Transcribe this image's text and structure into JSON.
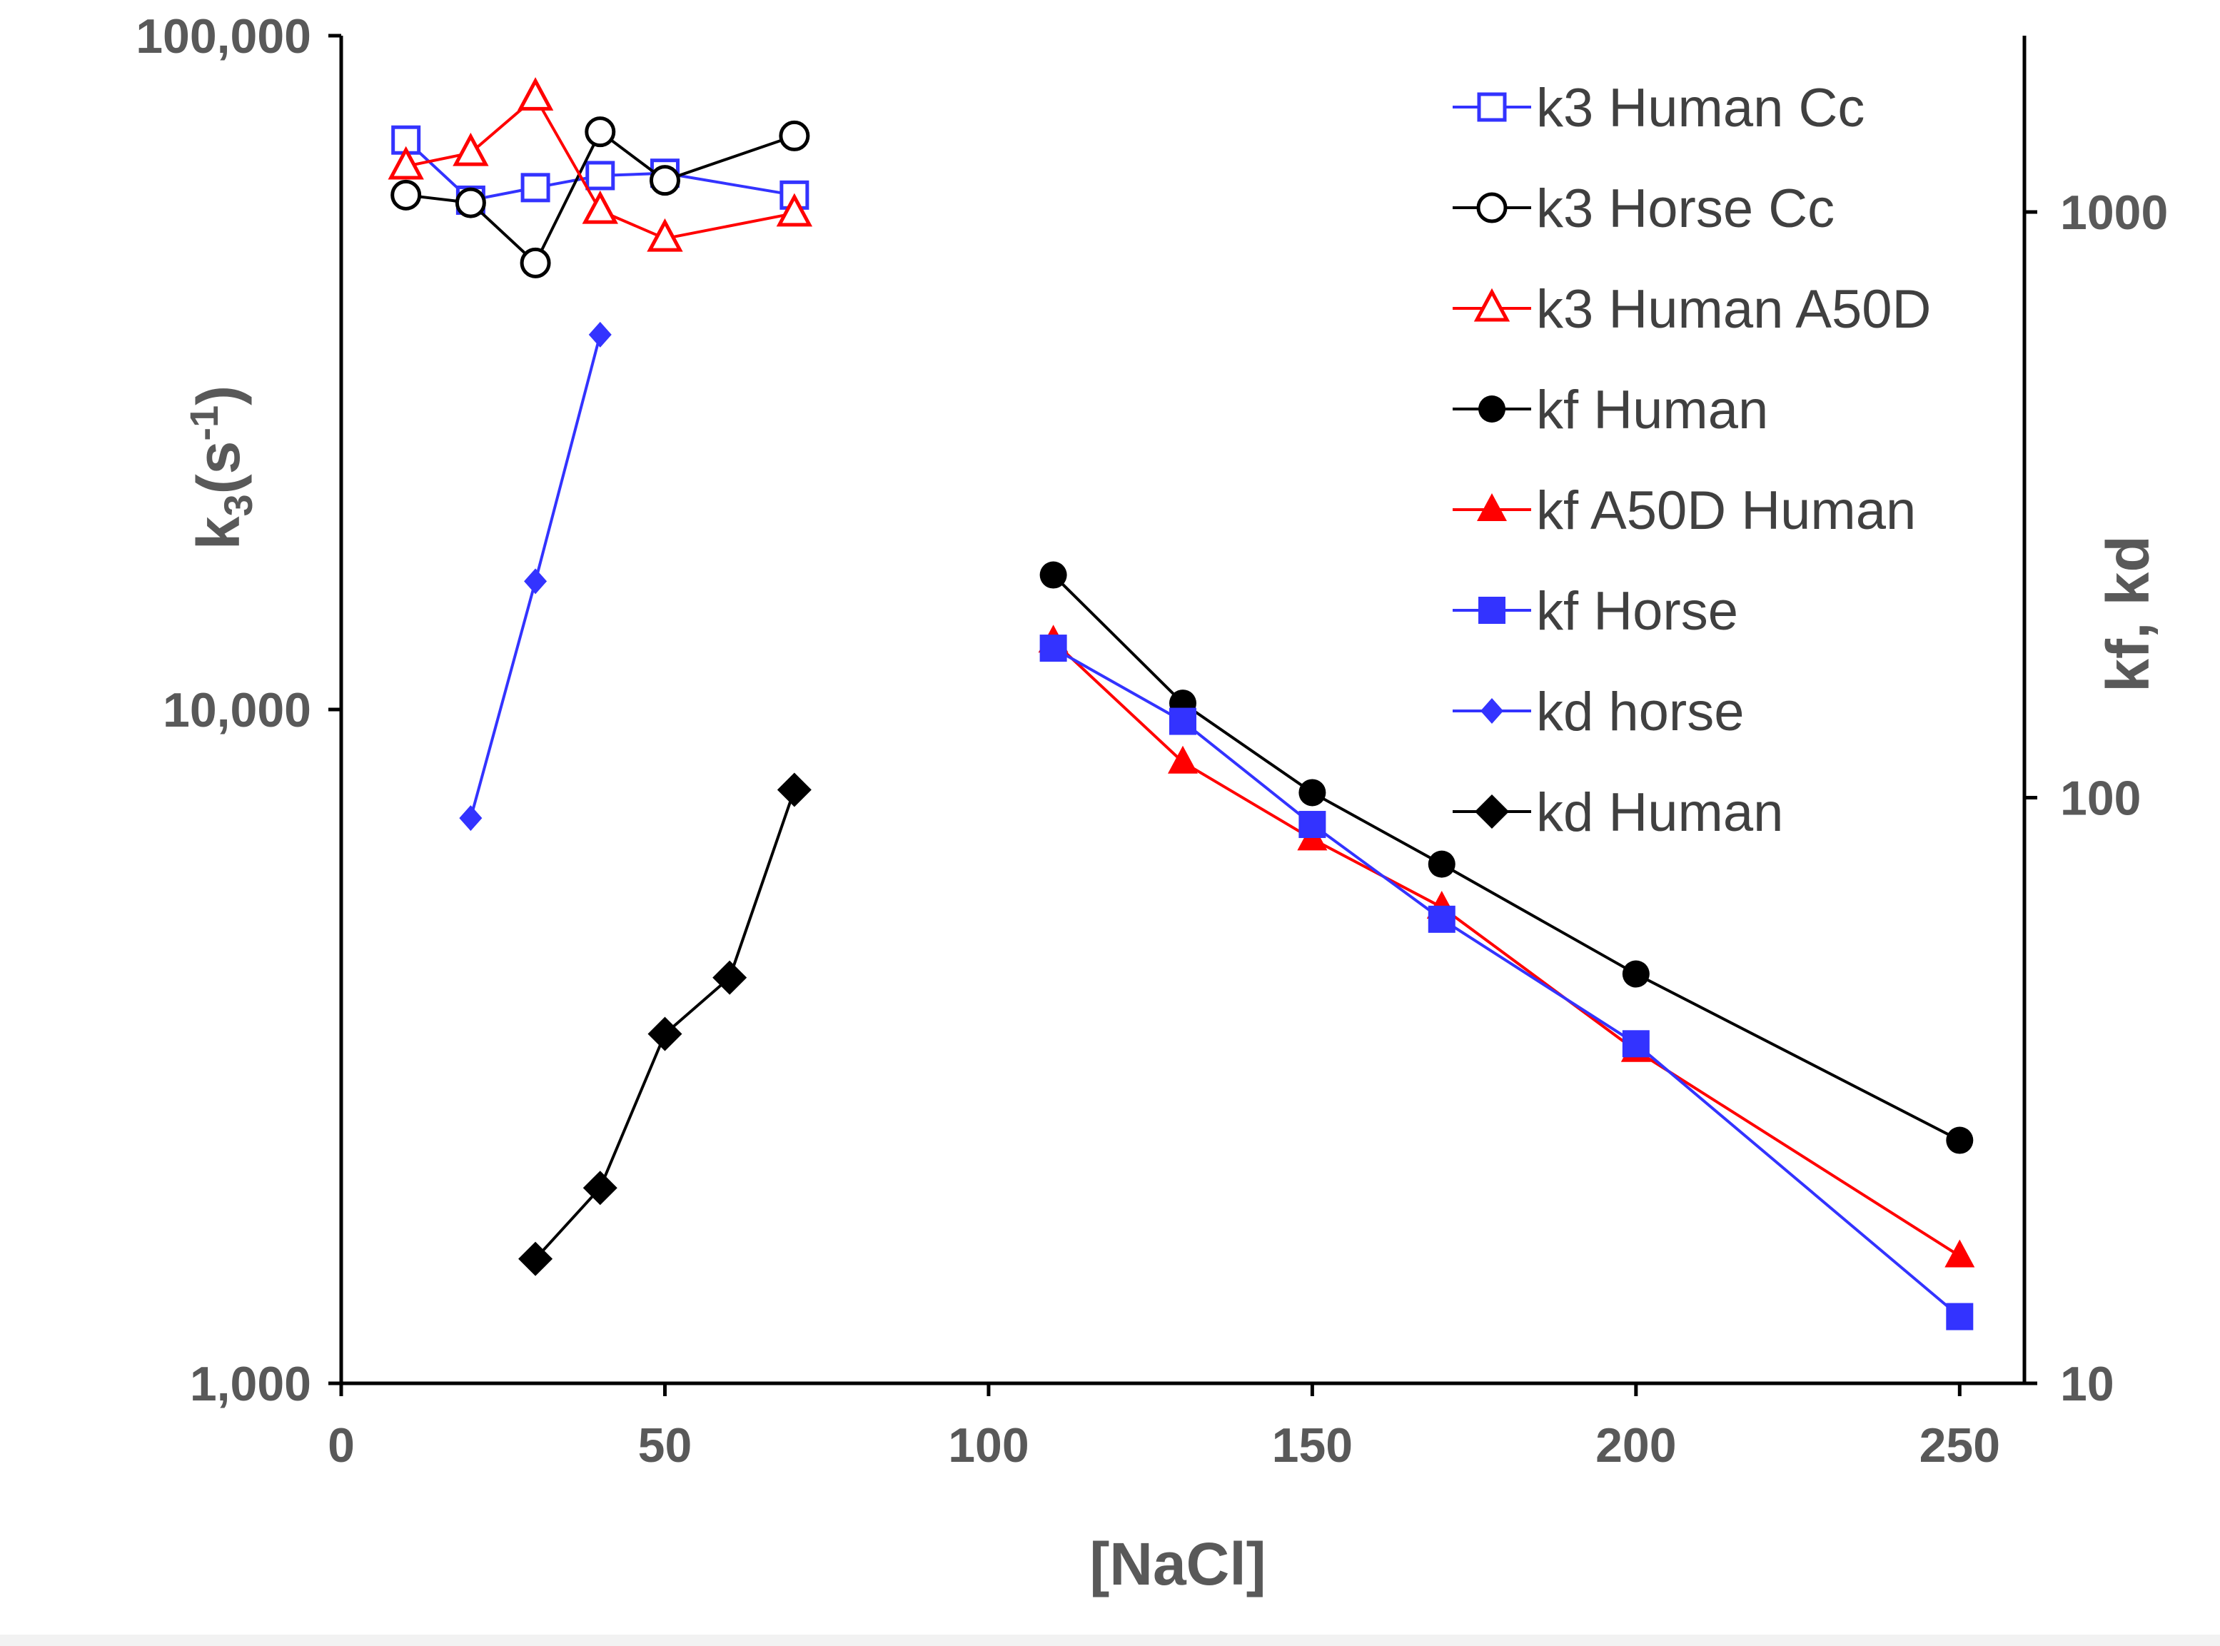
{
  "chart_data": {
    "type": "scatter",
    "xlabel": "[NaCl]",
    "ylabel_main": "k",
    "ylabel_sub": "3",
    "ylabel_mid": "(s",
    "ylabel_sup": "-1",
    "ylabel_end": ")",
    "y2label": "kf, kd",
    "xlim": [
      0,
      260
    ],
    "xticks": [
      0,
      50,
      100,
      150,
      200,
      250
    ],
    "xtick_labels": [
      "0",
      "50",
      "100",
      "150",
      "200",
      "250"
    ],
    "ylim": [
      1000,
      100000
    ],
    "yscale": "log",
    "yticks": [
      1000,
      10000,
      100000
    ],
    "ytick_labels": [
      "1,000",
      "10,000",
      "100,000"
    ],
    "y2lim": [
      10,
      2000
    ],
    "y2scale": "log",
    "y2ticks": [
      10,
      100,
      1000
    ],
    "y2tick_labels": [
      "10",
      "100",
      "1000"
    ],
    "grid": false,
    "legend_position": "top-right",
    "series": [
      {
        "name": "k3 Human Cc",
        "axis": "left",
        "color": "#3333ff",
        "marker": "square-open",
        "x": [
          10,
          20,
          30,
          40,
          50,
          70
        ],
        "y": [
          70000,
          57000,
          59500,
          62000,
          62500,
          58000
        ]
      },
      {
        "name": "k3 Horse Cc",
        "axis": "left",
        "color": "#000000",
        "marker": "circle-open",
        "x": [
          10,
          20,
          30,
          40,
          50,
          70
        ],
        "y": [
          58000,
          56500,
          46000,
          72000,
          61000,
          71000
        ]
      },
      {
        "name": "k3 Human A50D",
        "axis": "left",
        "color": "#ff0000",
        "marker": "triangle-open",
        "x": [
          10,
          20,
          30,
          40,
          50,
          70
        ],
        "y": [
          64000,
          67000,
          81000,
          55000,
          50000,
          54500
        ]
      },
      {
        "name": "kf Human",
        "axis": "right",
        "color": "#000000",
        "marker": "circle",
        "x": [
          110,
          130,
          150,
          170,
          200,
          250
        ],
        "y": [
          240,
          145,
          102,
          77,
          50,
          26
        ]
      },
      {
        "name": "kf A50D Human",
        "axis": "right",
        "color": "#ff0000",
        "marker": "triangle",
        "x": [
          110,
          130,
          150,
          170,
          200,
          250
        ],
        "y": [
          185,
          115,
          85,
          65,
          37,
          16.5
        ]
      },
      {
        "name": "kf Horse",
        "axis": "right",
        "color": "#3333ff",
        "marker": "square",
        "x": [
          110,
          130,
          150,
          170,
          200,
          250
        ],
        "y": [
          180,
          135,
          90,
          62,
          38,
          13
        ]
      },
      {
        "name": "kd horse",
        "axis": "left",
        "color": "#3333ff",
        "marker": "diamond",
        "x": [
          20,
          30,
          40
        ],
        "y": [
          6900,
          15500,
          36000
        ]
      },
      {
        "name": "kd Human",
        "axis": "left",
        "color": "#000000",
        "marker": "diamond-large",
        "x": [
          30,
          40,
          50,
          60,
          70
        ],
        "y": [
          1530,
          1950,
          3300,
          4000,
          7600
        ]
      }
    ]
  }
}
